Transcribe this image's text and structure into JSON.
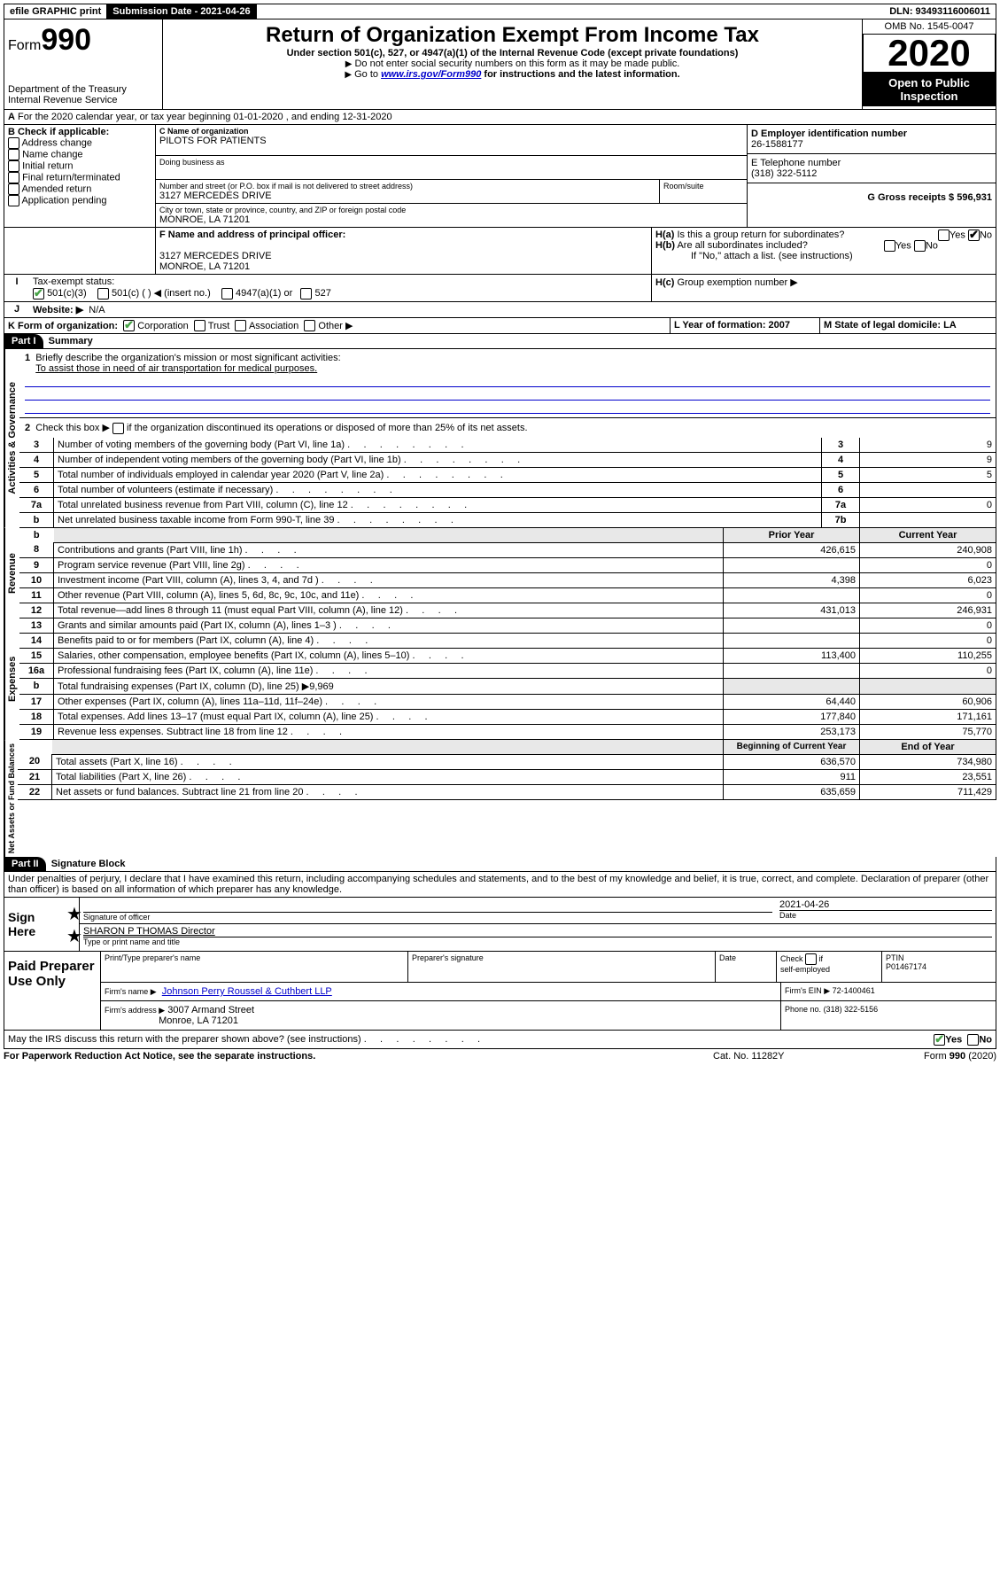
{
  "topbar": {
    "efile": "efile GRAPHIC print",
    "submission_label": "Submission Date - 2021-04-26",
    "dln": "DLN: 93493116006011"
  },
  "header": {
    "form_word": "Form",
    "form_num": "990",
    "dept": "Department of the Treasury",
    "irs": "Internal Revenue Service",
    "title": "Return of Organization Exempt From Income Tax",
    "subtitle": "Under section 501(c), 527, or 4947(a)(1) of the Internal Revenue Code (except private foundations)",
    "note1": "Do not enter social security numbers on this form as it may be made public.",
    "note2_pre": "Go to ",
    "note2_link": "www.irs.gov/Form990",
    "note2_post": " for instructions and the latest information.",
    "omb": "OMB No. 1545-0047",
    "year": "2020",
    "inspection": "Open to Public Inspection"
  },
  "periodA": "For the 2020 calendar year, or tax year beginning 01-01-2020   , and ending 12-31-2020",
  "boxB": {
    "title": "B Check if applicable:",
    "items": [
      "Address change",
      "Name change",
      "Initial return",
      "Final return/terminated",
      "Amended return",
      "Application pending"
    ]
  },
  "boxC": {
    "label": "C Name of organization",
    "name": "PILOTS FOR PATIENTS",
    "dba_label": "Doing business as",
    "addr_label": "Number and street (or P.O. box if mail is not delivered to street address)",
    "room_label": "Room/suite",
    "addr": "3127 MERCEDES DRIVE",
    "city_label": "City or town, state or province, country, and ZIP or foreign postal code",
    "city": "MONROE, LA  71201"
  },
  "boxD": {
    "label": "D Employer identification number",
    "value": "26-1588177"
  },
  "boxE": {
    "label": "E Telephone number",
    "value": "(318) 322-5112"
  },
  "boxG": {
    "label": "G Gross receipts $ 596,931"
  },
  "boxF": {
    "label": "F  Name and address of principal officer:",
    "addr1": "3127 MERCEDES DRIVE",
    "addr2": "MONROE, LA  71201"
  },
  "boxH": {
    "a": "Is this a group return for subordinates?",
    "b": "Are all subordinates included?",
    "b_note": "If \"No,\" attach a list. (see instructions)",
    "c": "Group exemption number ▶"
  },
  "boxI": {
    "label": "Tax-exempt status:",
    "opts": [
      "501(c)(3)",
      "501(c) (  ) ◀ (insert no.)",
      "4947(a)(1) or",
      "527"
    ]
  },
  "boxJ": {
    "label": "Website: ▶",
    "value": "N/A"
  },
  "boxK": {
    "label": "K Form of organization:",
    "opts": [
      "Corporation",
      "Trust",
      "Association",
      "Other ▶"
    ]
  },
  "boxL": {
    "label": "L Year of formation: 2007"
  },
  "boxM": {
    "label": "M State of legal domicile: LA"
  },
  "part1": {
    "tab": "Part I",
    "title": "Summary",
    "side1": "Activities & Governance",
    "side2": "Revenue",
    "side3": "Expenses",
    "side4": "Net Assets or Fund Balances",
    "line1_label": "Briefly describe the organization's mission or most significant activities:",
    "line1_text": "To assist those in need of air transportation for medical purposes.",
    "line2_label": "Check this box ▶",
    "line2_text": " if the organization discontinued its operations or disposed of more than 25% of its net assets.",
    "rows_gov": [
      {
        "n": "3",
        "t": "Number of voting members of the governing body (Part VI, line 1a)",
        "c": "3",
        "v": "9"
      },
      {
        "n": "4",
        "t": "Number of independent voting members of the governing body (Part VI, line 1b)",
        "c": "4",
        "v": "9"
      },
      {
        "n": "5",
        "t": "Total number of individuals employed in calendar year 2020 (Part V, line 2a)",
        "c": "5",
        "v": "5"
      },
      {
        "n": "6",
        "t": "Total number of volunteers (estimate if necessary)",
        "c": "6",
        "v": ""
      },
      {
        "n": "7a",
        "t": "Total unrelated business revenue from Part VIII, column (C), line 12",
        "c": "7a",
        "v": "0"
      },
      {
        "n": "b",
        "t": "Net unrelated business taxable income from Form 990-T, line 39",
        "c": "7b",
        "v": ""
      }
    ],
    "col_prior": "Prior Year",
    "col_current": "Current Year",
    "rows_rev": [
      {
        "n": "8",
        "t": "Contributions and grants (Part VIII, line 1h)",
        "p": "426,615",
        "c": "240,908"
      },
      {
        "n": "9",
        "t": "Program service revenue (Part VIII, line 2g)",
        "p": "",
        "c": "0"
      },
      {
        "n": "10",
        "t": "Investment income (Part VIII, column (A), lines 3, 4, and 7d )",
        "p": "4,398",
        "c": "6,023"
      },
      {
        "n": "11",
        "t": "Other revenue (Part VIII, column (A), lines 5, 6d, 8c, 9c, 10c, and 11e)",
        "p": "",
        "c": "0"
      },
      {
        "n": "12",
        "t": "Total revenue—add lines 8 through 11 (must equal Part VIII, column (A), line 12)",
        "p": "431,013",
        "c": "246,931"
      }
    ],
    "rows_exp": [
      {
        "n": "13",
        "t": "Grants and similar amounts paid (Part IX, column (A), lines 1–3 )",
        "p": "",
        "c": "0"
      },
      {
        "n": "14",
        "t": "Benefits paid to or for members (Part IX, column (A), line 4)",
        "p": "",
        "c": "0"
      },
      {
        "n": "15",
        "t": "Salaries, other compensation, employee benefits (Part IX, column (A), lines 5–10)",
        "p": "113,400",
        "c": "110,255"
      },
      {
        "n": "16a",
        "t": "Professional fundraising fees (Part IX, column (A), line 11e)",
        "p": "",
        "c": "0"
      },
      {
        "n": "b",
        "t": "Total fundraising expenses (Part IX, column (D), line 25) ▶9,969",
        "p": null,
        "c": null
      },
      {
        "n": "17",
        "t": "Other expenses (Part IX, column (A), lines 11a–11d, 11f–24e)",
        "p": "64,440",
        "c": "60,906"
      },
      {
        "n": "18",
        "t": "Total expenses. Add lines 13–17 (must equal Part IX, column (A), line 25)",
        "p": "177,840",
        "c": "171,161"
      },
      {
        "n": "19",
        "t": "Revenue less expenses. Subtract line 18 from line 12",
        "p": "253,173",
        "c": "75,770"
      }
    ],
    "col_begin": "Beginning of Current Year",
    "col_end": "End of Year",
    "rows_bal": [
      {
        "n": "20",
        "t": "Total assets (Part X, line 16)",
        "p": "636,570",
        "c": "734,980"
      },
      {
        "n": "21",
        "t": "Total liabilities (Part X, line 26)",
        "p": "911",
        "c": "23,551"
      },
      {
        "n": "22",
        "t": "Net assets or fund balances. Subtract line 21 from line 20",
        "p": "635,659",
        "c": "711,429"
      }
    ]
  },
  "part2": {
    "tab": "Part II",
    "title": "Signature Block",
    "perjury": "Under penalties of perjury, I declare that I have examined this return, including accompanying schedules and statements, and to the best of my knowledge and belief, it is true, correct, and complete. Declaration of preparer (other than officer) is based on all information of which preparer has any knowledge.",
    "sign_here": "Sign Here",
    "sig_officer": "Signature of officer",
    "date_label": "Date",
    "date_val": "2021-04-26",
    "name_title": "SHARON P THOMAS  Director",
    "name_title_label": "Type or print name and title",
    "paid": "Paid Preparer Use Only",
    "prep_name_label": "Print/Type preparer's name",
    "prep_sig_label": "Preparer's signature",
    "check_label": "Check",
    "self_emp": "self-employed",
    "ptin_label": "PTIN",
    "ptin": "P01467174",
    "firm_name_label": "Firm's name   ▶",
    "firm_name": "Johnson Perry Roussel & Cuthbert LLP",
    "firm_ein_label": "Firm's EIN ▶",
    "firm_ein": "72-1400461",
    "firm_addr_label": "Firm's address ▶",
    "firm_addr1": "3007 Armand Street",
    "firm_addr2": "Monroe, LA  71201",
    "phone_label": "Phone no.",
    "phone": "(318) 322-5156",
    "discuss": "May the IRS discuss this return with the preparer shown above? (see instructions)",
    "paperwork": "For Paperwork Reduction Act Notice, see the separate instructions.",
    "cat": "Cat. No. 11282Y",
    "formref": "Form 990 (2020)"
  },
  "yes": "Yes",
  "no": "No"
}
